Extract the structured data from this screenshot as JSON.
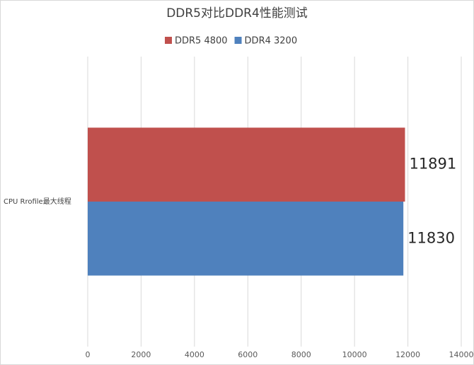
{
  "chart_data": {
    "type": "bar",
    "orientation": "horizontal",
    "title": "DDR5对比DDR4性能测试",
    "categories": [
      "CPU Rrofile最大线程"
    ],
    "series": [
      {
        "name": "DDR5 4800",
        "color": "#c0504d",
        "values": [
          11891
        ]
      },
      {
        "name": "DDR4 3200",
        "color": "#4f81bd",
        "values": [
          11830
        ]
      }
    ],
    "xlim": [
      0,
      14000
    ],
    "xticks": [
      0,
      2000,
      4000,
      6000,
      8000,
      10000,
      12000,
      14000
    ],
    "grid": true,
    "legend": "top"
  }
}
